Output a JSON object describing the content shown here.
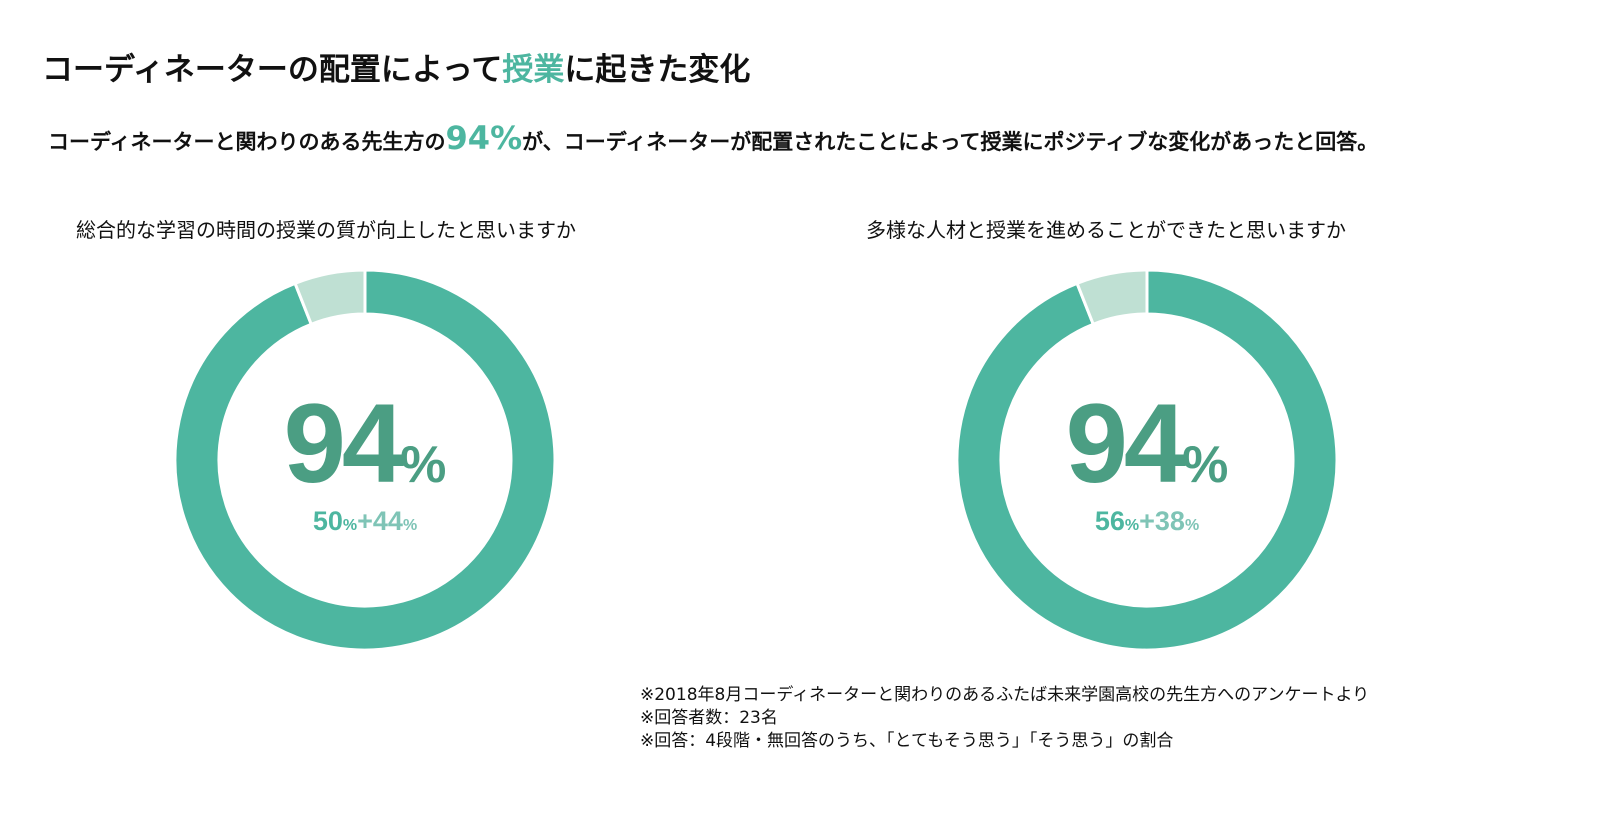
{
  "title": {
    "before": "コーディネーターの配置によって",
    "highlight": "授業",
    "after": "に起きた変化"
  },
  "subtitle": {
    "before": "コーディネーターと関わりのある先生方の",
    "highlight": "94%",
    "after": "が、コーディネーターが配置されたことによって授業にポジティブな変化があったと回答。"
  },
  "colors": {
    "main": "#4db6a0",
    "light": "#bfe0d3",
    "bignum": "#4b9e83"
  },
  "chart_data": [
    {
      "type": "pie",
      "title": "総合的な学習の時間の授業の質が向上したと思いますか",
      "center_value": "94",
      "center_unit": "%",
      "breakdown": {
        "a": "50",
        "a_unit": "%",
        "plus": "+",
        "b": "44",
        "b_unit": "%"
      },
      "segments": [
        {
          "value": 94
        },
        {
          "value": 6
        }
      ]
    },
    {
      "type": "pie",
      "title": "多様な人材と授業を進めることができたと思いますか",
      "center_value": "94",
      "center_unit": "%",
      "breakdown": {
        "a": "56",
        "a_unit": "%",
        "plus": "+",
        "b": "38",
        "b_unit": "%"
      },
      "segments": [
        {
          "value": 94
        },
        {
          "value": 6
        }
      ]
    }
  ],
  "notes": [
    "※2018年8月コーディネーターと関わりのあるふたば未来学園高校の先生方へのアンケートより",
    "※回答者数：23名",
    "※回答：4段階・無回答のうち、「とてもそう思う」「そう思う」の割合"
  ]
}
